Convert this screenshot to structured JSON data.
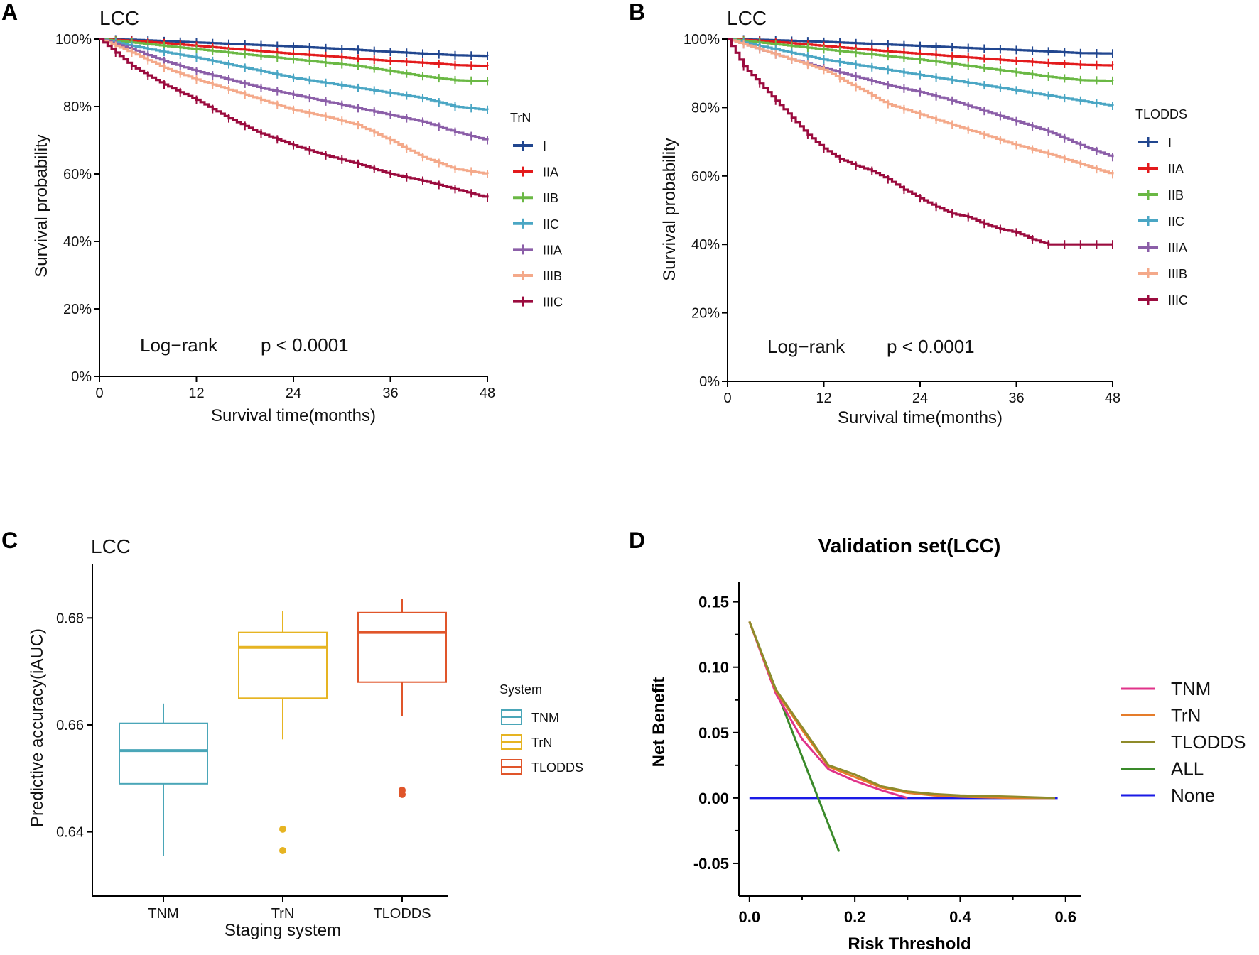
{
  "chart_data": [
    {
      "id": "A",
      "type": "line",
      "panel_label": "A",
      "title": "LCC",
      "xlabel": "Survival time(months)",
      "ylabel": "Survival probability",
      "xlim": [
        0,
        48
      ],
      "ylim": [
        0,
        100
      ],
      "xticks": [
        0,
        12,
        24,
        36,
        48
      ],
      "yticks": [
        0,
        20,
        40,
        60,
        80,
        100
      ],
      "ytick_labels": [
        "0%",
        "20%",
        "40%",
        "60%",
        "80%",
        "100%"
      ],
      "legend_title": "TrN",
      "annotation_test": "Log−rank",
      "annotation_p": "p < 0.0001",
      "series": [
        {
          "name": "I",
          "color": "#21468f",
          "x": [
            0,
            4,
            8,
            12,
            16,
            20,
            24,
            28,
            32,
            36,
            40,
            44,
            48
          ],
          "y": [
            100,
            99.8,
            99.4,
            99,
            98.6,
            98.2,
            97.8,
            97.3,
            96.8,
            96.2,
            95.7,
            95.2,
            95
          ]
        },
        {
          "name": "IIA",
          "color": "#e31a1c",
          "x": [
            0,
            4,
            8,
            12,
            16,
            20,
            24,
            28,
            32,
            36,
            40,
            44,
            48
          ],
          "y": [
            100,
            99.5,
            98.8,
            98,
            97.2,
            96.4,
            95.6,
            95,
            94.2,
            93.5,
            93,
            92.3,
            92
          ]
        },
        {
          "name": "IIB",
          "color": "#6ab844",
          "x": [
            0,
            4,
            8,
            12,
            16,
            20,
            24,
            28,
            32,
            36,
            40,
            44,
            48
          ],
          "y": [
            100,
            99,
            98,
            97,
            96,
            95,
            94,
            93,
            92,
            90.5,
            89,
            87.8,
            87.5
          ]
        },
        {
          "name": "IIC",
          "color": "#4aa6c4",
          "x": [
            0,
            4,
            8,
            12,
            16,
            20,
            24,
            28,
            32,
            36,
            40,
            44,
            48
          ],
          "y": [
            100,
            98,
            96.2,
            94.5,
            92.5,
            90.5,
            88.5,
            87,
            85.5,
            84,
            82.5,
            80,
            79
          ]
        },
        {
          "name": "IIIA",
          "color": "#8b5ea8",
          "x": [
            0,
            4,
            8,
            12,
            16,
            20,
            24,
            28,
            32,
            36,
            40,
            44,
            48
          ],
          "y": [
            100,
            97,
            93.5,
            90.5,
            88,
            85.5,
            83.5,
            81.5,
            79.5,
            77.5,
            75.5,
            72.5,
            70
          ]
        },
        {
          "name": "IIIB",
          "color": "#f4a98a",
          "x": [
            0,
            4,
            8,
            12,
            16,
            20,
            24,
            28,
            32,
            36,
            40,
            44,
            48
          ],
          "y": [
            100,
            96,
            91.5,
            88,
            85,
            82,
            79,
            77,
            74.5,
            70,
            65,
            61.5,
            60
          ]
        },
        {
          "name": "IIIC",
          "color": "#9b0b3e",
          "x": [
            0,
            4,
            8,
            12,
            16,
            20,
            24,
            28,
            32,
            36,
            40,
            44,
            48
          ],
          "y": [
            100,
            92,
            86.5,
            82,
            76.5,
            72,
            68.5,
            65.5,
            63,
            60,
            58,
            55.5,
            53
          ]
        }
      ]
    },
    {
      "id": "B",
      "type": "line",
      "panel_label": "B",
      "title": "LCC",
      "xlabel": "Survival time(months)",
      "ylabel": "Survival probability",
      "xlim": [
        0,
        48
      ],
      "ylim": [
        0,
        100
      ],
      "xticks": [
        0,
        12,
        24,
        36,
        48
      ],
      "yticks": [
        0,
        20,
        40,
        60,
        80,
        100
      ],
      "ytick_labels": [
        "0%",
        "20%",
        "40%",
        "60%",
        "80%",
        "100%"
      ],
      "legend_title": "TLODDS",
      "annotation_test": "Log−rank",
      "annotation_p": "p < 0.0001",
      "series": [
        {
          "name": "I",
          "color": "#21468f",
          "x": [
            0,
            4,
            8,
            12,
            16,
            20,
            24,
            28,
            32,
            36,
            40,
            44,
            48
          ],
          "y": [
            100,
            99.8,
            99.5,
            99.2,
            98.8,
            98.4,
            98,
            97.6,
            97.2,
            96.8,
            96.4,
            95.9,
            95.8
          ]
        },
        {
          "name": "IIA",
          "color": "#e31a1c",
          "x": [
            0,
            4,
            8,
            12,
            16,
            20,
            24,
            28,
            32,
            36,
            40,
            44,
            48
          ],
          "y": [
            100,
            99.5,
            98.8,
            98,
            97.2,
            96.4,
            95.7,
            95,
            94.3,
            93.6,
            93,
            92.5,
            92.3
          ]
        },
        {
          "name": "IIB",
          "color": "#6ab844",
          "x": [
            0,
            4,
            8,
            12,
            16,
            20,
            24,
            28,
            32,
            36,
            40,
            44,
            48
          ],
          "y": [
            100,
            99,
            98,
            97,
            96,
            95,
            94,
            92.8,
            91.5,
            90.3,
            89,
            88,
            87.8
          ]
        },
        {
          "name": "IIC",
          "color": "#4aa6c4",
          "x": [
            0,
            4,
            8,
            12,
            16,
            20,
            24,
            28,
            32,
            36,
            40,
            44,
            48
          ],
          "y": [
            100,
            98,
            96,
            94,
            92.5,
            91,
            89.5,
            88,
            86.5,
            85,
            83.5,
            82,
            80.5
          ]
        },
        {
          "name": "IIIA",
          "color": "#8b5ea8",
          "x": [
            0,
            4,
            8,
            12,
            16,
            20,
            24,
            28,
            32,
            36,
            40,
            44,
            48
          ],
          "y": [
            100,
            97,
            94,
            91.5,
            89,
            86.5,
            84.5,
            82,
            79,
            76,
            73,
            69,
            65.5
          ]
        },
        {
          "name": "IIIB",
          "color": "#f4a98a",
          "x": [
            0,
            4,
            8,
            12,
            16,
            20,
            24,
            28,
            32,
            36,
            40,
            44,
            48
          ],
          "y": [
            100,
            97,
            94,
            91,
            86,
            81,
            78,
            75,
            72,
            69,
            66.5,
            63.5,
            60.5
          ]
        },
        {
          "name": "IIIC",
          "color": "#9b0b3e",
          "x": [
            0,
            2,
            4,
            6,
            8,
            10,
            12,
            14,
            16,
            18,
            20,
            22,
            24,
            26,
            28,
            30,
            32,
            34,
            36,
            38,
            40,
            44,
            48
          ],
          "y": [
            100,
            92,
            87,
            82,
            77,
            72,
            68,
            65,
            63,
            61.5,
            59,
            56,
            53.5,
            51,
            49,
            48,
            46,
            44.5,
            43.5,
            41.5,
            40,
            40,
            40
          ]
        }
      ]
    },
    {
      "id": "C",
      "type": "box",
      "panel_label": "C",
      "title": "LCC",
      "xlabel": "Staging system",
      "ylabel": "Predictive accuracy(iAUC)",
      "ylim": [
        0.628,
        0.69
      ],
      "yticks": [
        0.64,
        0.66,
        0.68
      ],
      "ytick_labels": [
        "0.64",
        "0.66",
        "0.68"
      ],
      "legend_title": "System",
      "categories": [
        "TNM",
        "TrN",
        "TLODDS"
      ],
      "boxes": [
        {
          "name": "TNM",
          "color": "#4aa6b8",
          "whisker_low": 0.6355,
          "q1": 0.649,
          "median": 0.6552,
          "q3": 0.6603,
          "whisker_high": 0.664,
          "outliers": []
        },
        {
          "name": "TrN",
          "color": "#e6b422",
          "whisker_low": 0.6573,
          "q1": 0.665,
          "median": 0.6745,
          "q3": 0.6773,
          "whisker_high": 0.6813,
          "outliers": [
            0.6405,
            0.6365
          ]
        },
        {
          "name": "TLODDS",
          "color": "#e0552a",
          "whisker_low": 0.6617,
          "q1": 0.668,
          "median": 0.6773,
          "q3": 0.681,
          "whisker_high": 0.6835,
          "outliers": [
            0.6478,
            0.647
          ]
        }
      ]
    },
    {
      "id": "D",
      "type": "line",
      "panel_label": "D",
      "title": "Validation set(LCC)",
      "xlabel": "Risk Threshold",
      "ylabel": "Net Benefit",
      "xlim": [
        -0.02,
        0.63
      ],
      "ylim": [
        -0.075,
        0.165
      ],
      "xticks": [
        0.0,
        0.2,
        0.4,
        0.6
      ],
      "xtick_labels": [
        "0.0",
        "0.2",
        "0.4",
        "0.6"
      ],
      "yticks": [
        -0.05,
        0.0,
        0.05,
        0.1,
        0.15
      ],
      "ytick_labels": [
        "-0.05",
        "0.00",
        "0.05",
        "0.10",
        "0.15"
      ],
      "series": [
        {
          "name": "TNM",
          "color": "#e0338a",
          "x": [
            0.0,
            0.05,
            0.1,
            0.15,
            0.2,
            0.25,
            0.3
          ],
          "y": [
            0.135,
            0.08,
            0.045,
            0.022,
            0.013,
            0.006,
            0.0
          ]
        },
        {
          "name": "TrN",
          "color": "#e57c2a",
          "x": [
            0.0,
            0.05,
            0.1,
            0.15,
            0.2,
            0.25,
            0.3,
            0.35,
            0.4,
            0.5,
            0.58
          ],
          "y": [
            0.135,
            0.082,
            0.052,
            0.024,
            0.016,
            0.008,
            0.004,
            0.002,
            0.001,
            0.0,
            0.0
          ]
        },
        {
          "name": "TLODDS",
          "color": "#8f8b2a",
          "x": [
            0.0,
            0.05,
            0.1,
            0.15,
            0.2,
            0.25,
            0.3,
            0.35,
            0.4,
            0.5,
            0.58
          ],
          "y": [
            0.135,
            0.083,
            0.054,
            0.025,
            0.018,
            0.009,
            0.005,
            0.003,
            0.002,
            0.001,
            0.0
          ]
        },
        {
          "name": "ALL",
          "color": "#3a8a2a",
          "x": [
            0.0,
            0.17
          ],
          "y": [
            0.135,
            -0.041
          ]
        },
        {
          "name": "None",
          "color": "#1a1ae6",
          "x": [
            0.0,
            0.585
          ],
          "y": [
            0.0,
            0.0
          ]
        }
      ]
    }
  ]
}
